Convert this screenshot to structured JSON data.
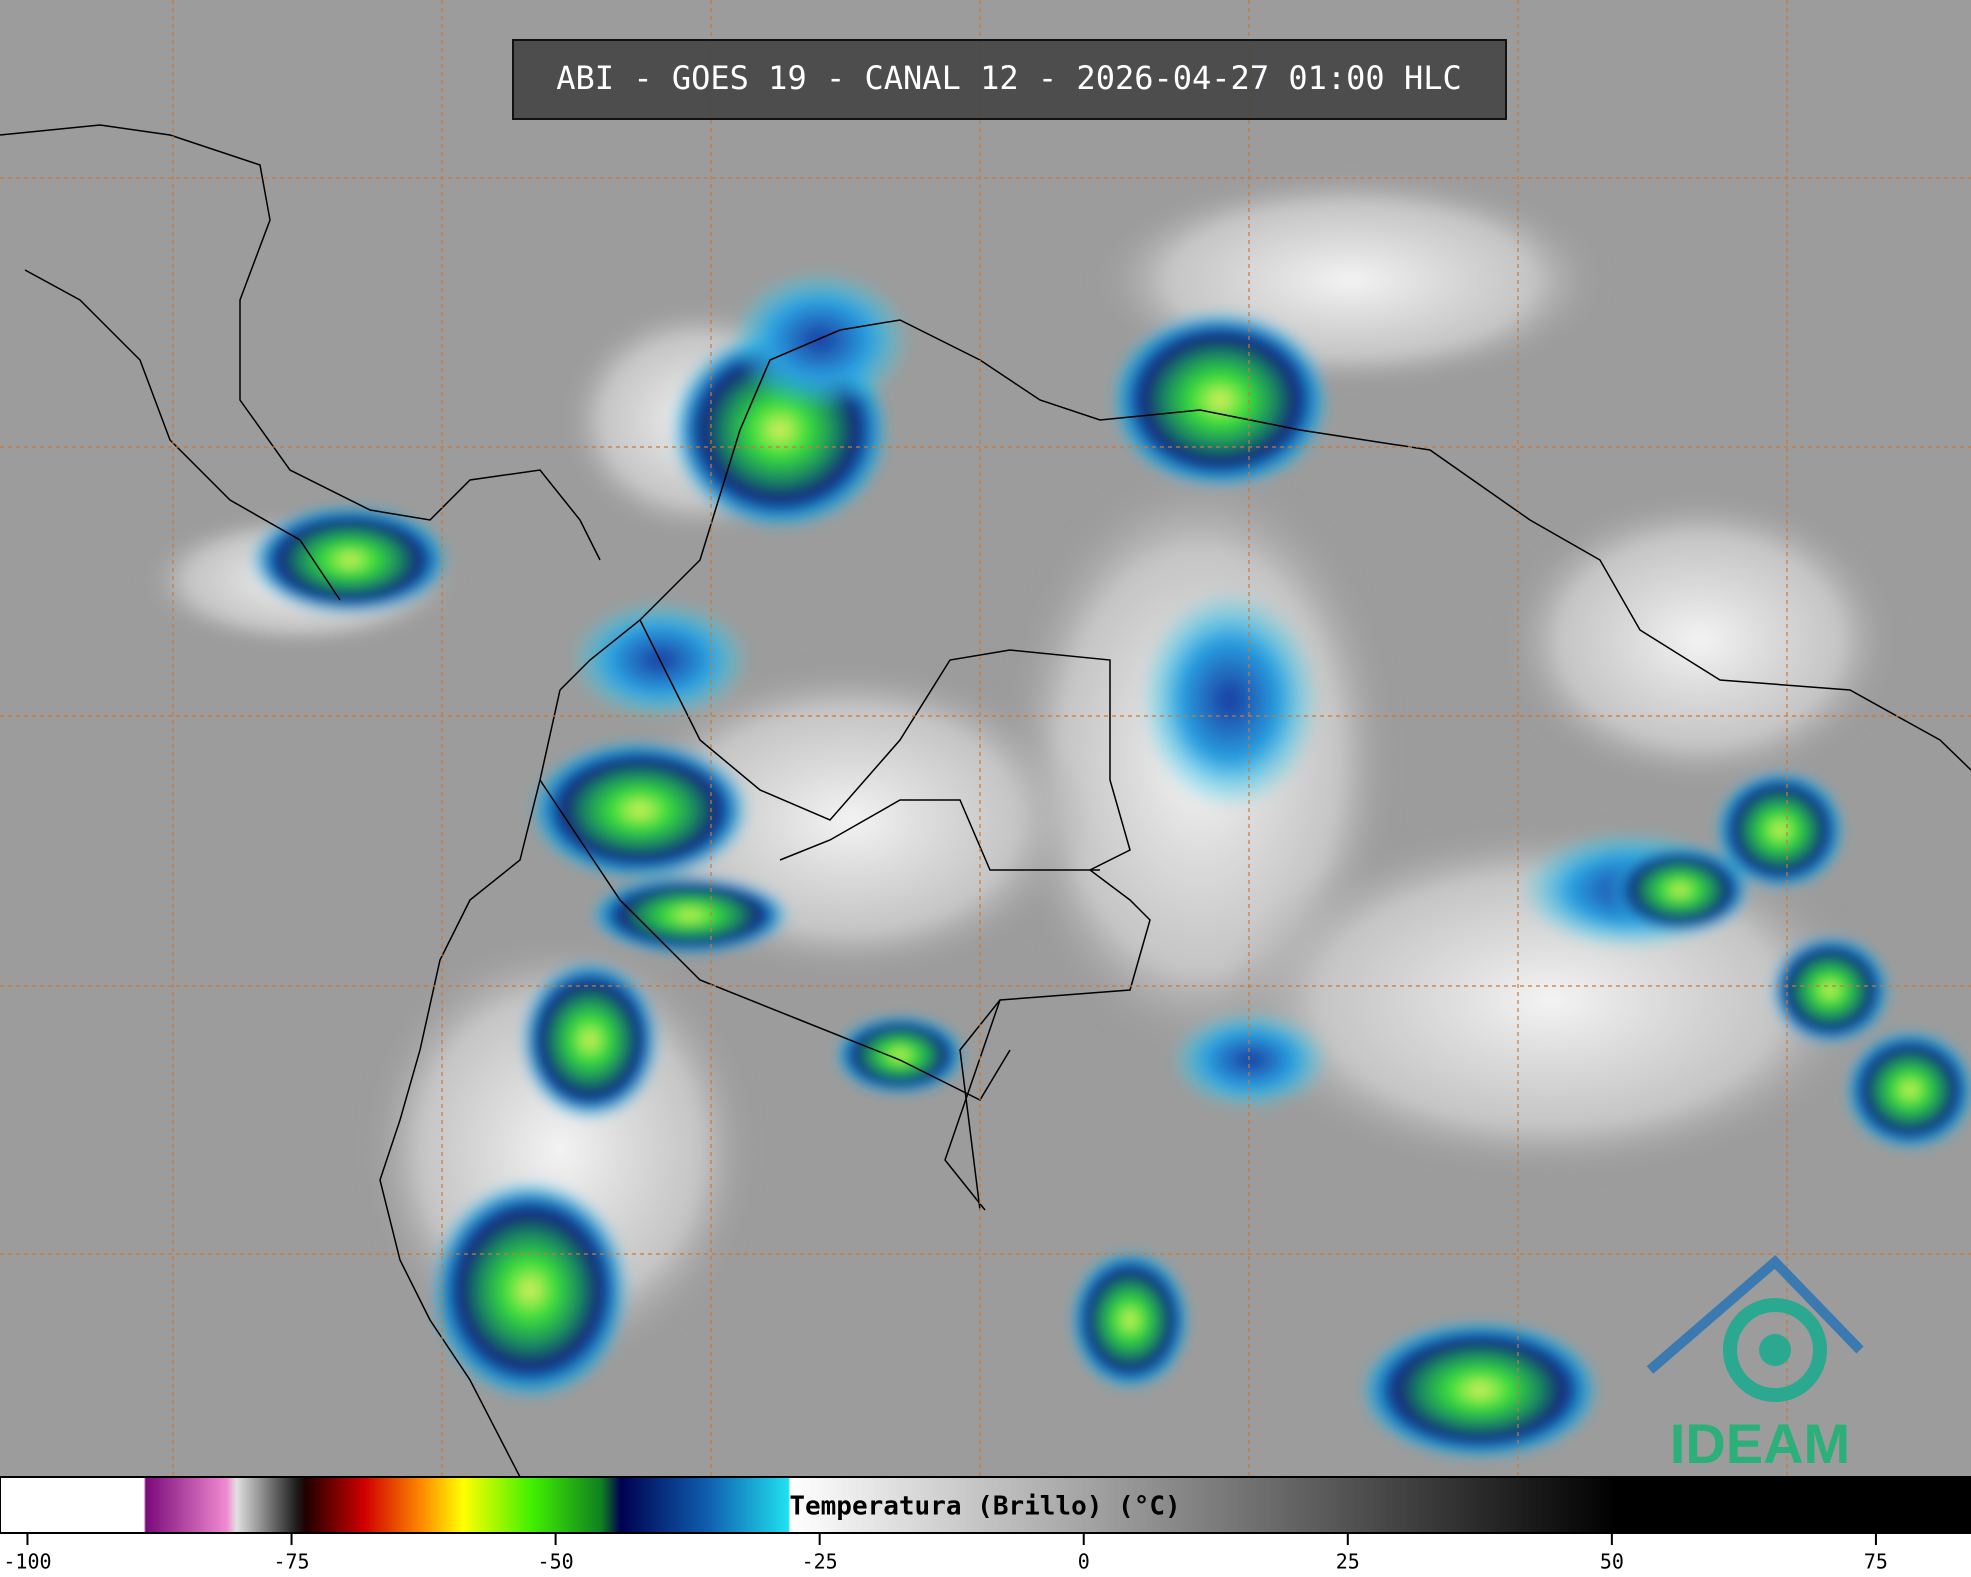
{
  "header": {
    "title": "ABI - GOES 19 - CANAL 12 - 2026-04-27 01:00 HLC"
  },
  "colorbar": {
    "label": "Temperatura (Brillo) (°C)",
    "range": [
      -102.6,
      84
    ],
    "ticks": [
      -100,
      -75,
      -50,
      -25,
      0,
      25,
      50,
      75
    ]
  },
  "logo": {
    "text": "IDEAM"
  }
}
